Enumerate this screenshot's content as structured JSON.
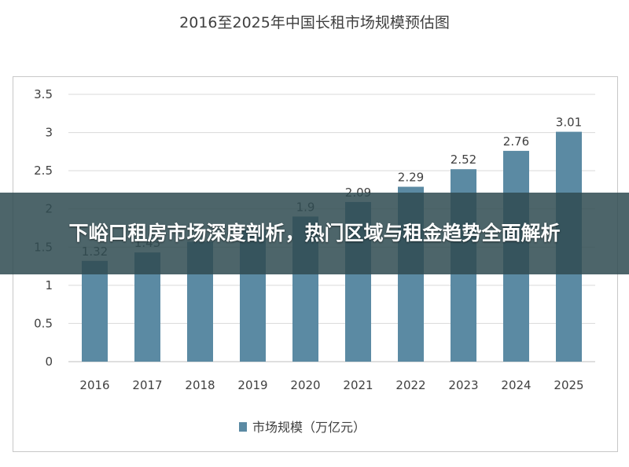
{
  "chart_data": {
    "type": "bar",
    "title": "2016至2025年中国长租市场规模预估图",
    "categories": [
      "2016",
      "2017",
      "2018",
      "2019",
      "2020",
      "2021",
      "2022",
      "2023",
      "2024",
      "2025"
    ],
    "series": [
      {
        "name": "市场规模（万亿元）",
        "values": [
          1.32,
          1.43,
          1.57,
          1.73,
          1.9,
          2.09,
          2.29,
          2.52,
          2.76,
          3.01
        ],
        "data_labels": [
          "1.32",
          "1.43",
          "",
          "",
          "1.9",
          "2.09",
          "2.29",
          "2.52",
          "2.76",
          "3.01"
        ]
      }
    ],
    "yticks": [
      "0",
      "0.5",
      "1",
      "1.5",
      "2",
      "2.5",
      "3",
      "3.5"
    ],
    "ylim": [
      0,
      3.5
    ],
    "grid": true,
    "legend": "bottom",
    "bar_color": "#5b8aa3"
  },
  "overlay": {
    "title": "下峪口租房市场深度剖析，热门区域与租金趋势全面解析"
  }
}
